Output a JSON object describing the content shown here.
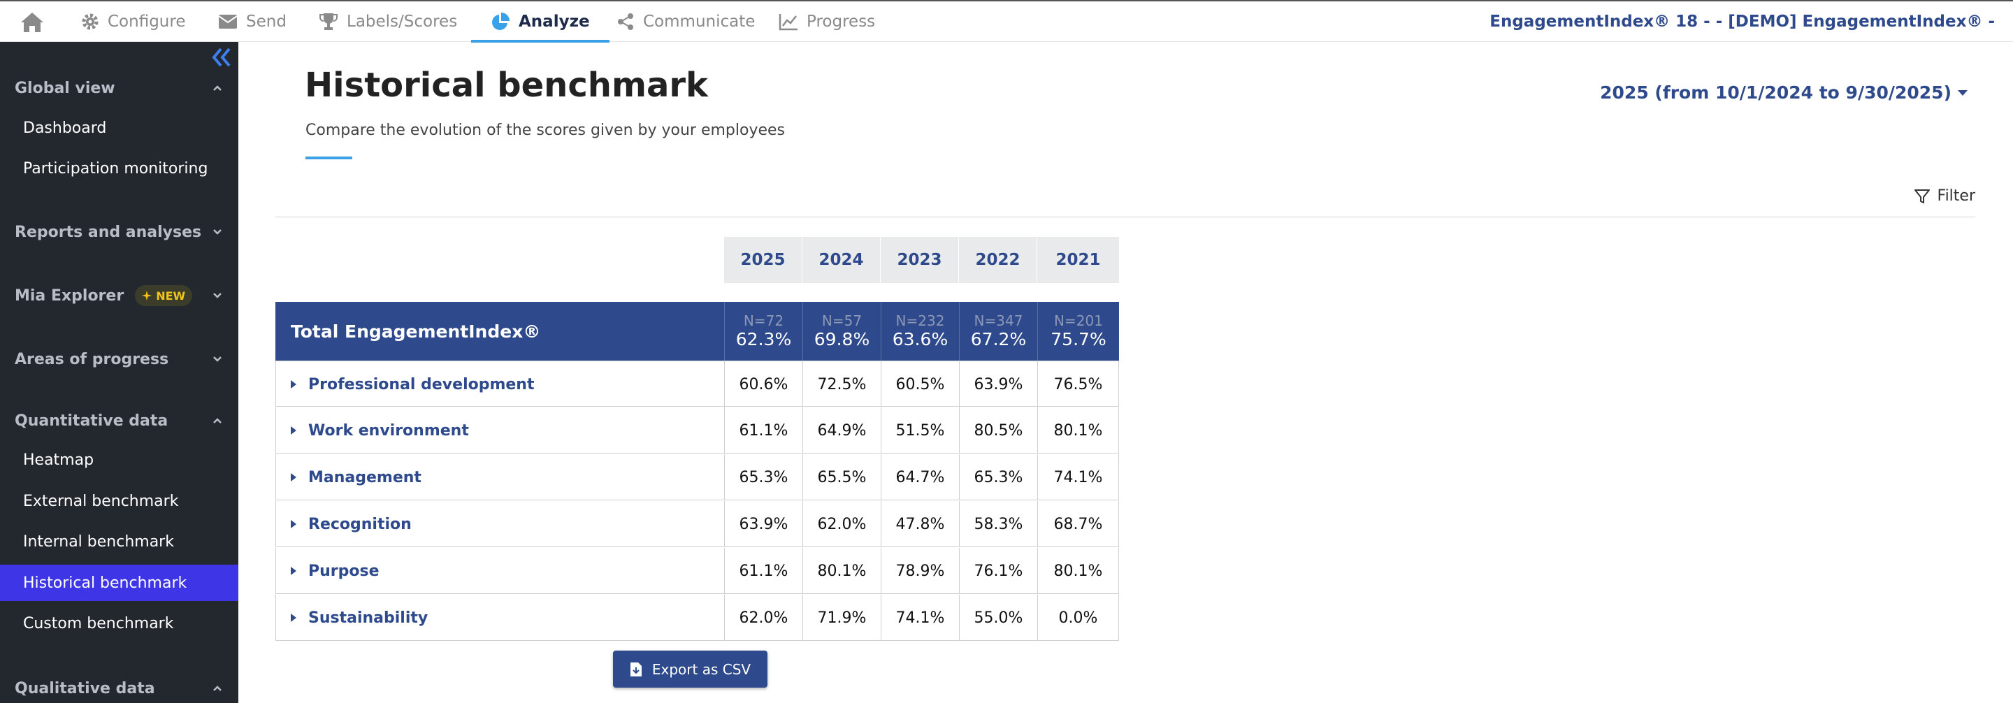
{
  "nav": {
    "items": [
      {
        "label": "Configure",
        "icon": "gear-icon"
      },
      {
        "label": "Send",
        "icon": "envelope-icon"
      },
      {
        "label": "Labels/Scores",
        "icon": "trophy-icon"
      },
      {
        "label": "Analyze",
        "icon": "pie-chart-icon",
        "active": true
      },
      {
        "label": "Communicate",
        "icon": "share-icon"
      },
      {
        "label": "Progress",
        "icon": "line-chart-icon"
      }
    ],
    "organization": "EngagementIndex® 18 - - [DEMO] EngagementIndex® -"
  },
  "sidebar": {
    "sections": [
      {
        "label": "Global view",
        "expanded": true
      },
      {
        "label": "Reports and analyses",
        "expanded": false
      },
      {
        "label": "Mia Explorer",
        "expanded": false,
        "badge": "NEW"
      },
      {
        "label": "Areas of progress",
        "expanded": false
      },
      {
        "label": "Quantitative data",
        "expanded": true
      },
      {
        "label": "Qualitative data",
        "expanded": true
      }
    ],
    "global_items": [
      "Dashboard",
      "Participation monitoring"
    ],
    "quant_items": [
      "Heatmap",
      "External benchmark",
      "Internal benchmark",
      "Historical benchmark",
      "Custom benchmark"
    ],
    "selected": "Historical benchmark"
  },
  "page": {
    "title": "Historical benchmark",
    "subtitle": "Compare the evolution of the scores given by your employees",
    "period": "2025 (from 10/1/2024 to 9/30/2025)",
    "filter_label": "Filter",
    "export_label": "Export as CSV"
  },
  "table": {
    "years": [
      "2025",
      "2024",
      "2023",
      "2022",
      "2021"
    ],
    "total": {
      "label": "Total EngagementIndex®",
      "counts": [
        "N=72",
        "N=57",
        "N=232",
        "N=347",
        "N=201"
      ],
      "values": [
        "62.3%",
        "69.8%",
        "63.6%",
        "67.2%",
        "75.7%"
      ]
    },
    "rows": [
      {
        "label": "Professional development",
        "values": [
          "60.6%",
          "72.5%",
          "60.5%",
          "63.9%",
          "76.5%"
        ]
      },
      {
        "label": "Work environment",
        "values": [
          "61.1%",
          "64.9%",
          "51.5%",
          "80.5%",
          "80.1%"
        ]
      },
      {
        "label": "Management",
        "values": [
          "65.3%",
          "65.5%",
          "64.7%",
          "65.3%",
          "74.1%"
        ]
      },
      {
        "label": "Recognition",
        "values": [
          "63.9%",
          "62.0%",
          "47.8%",
          "58.3%",
          "68.7%"
        ]
      },
      {
        "label": "Purpose",
        "values": [
          "61.1%",
          "80.1%",
          "78.9%",
          "76.1%",
          "80.1%"
        ]
      },
      {
        "label": "Sustainability",
        "values": [
          "62.0%",
          "71.9%",
          "74.1%",
          "55.0%",
          "0.0%"
        ]
      }
    ]
  },
  "colors": {
    "primary": "#2e4a8c",
    "accent": "#3aa0e8",
    "sidebar_bg": "#23272e",
    "sidebar_selected": "#3d35e6"
  }
}
